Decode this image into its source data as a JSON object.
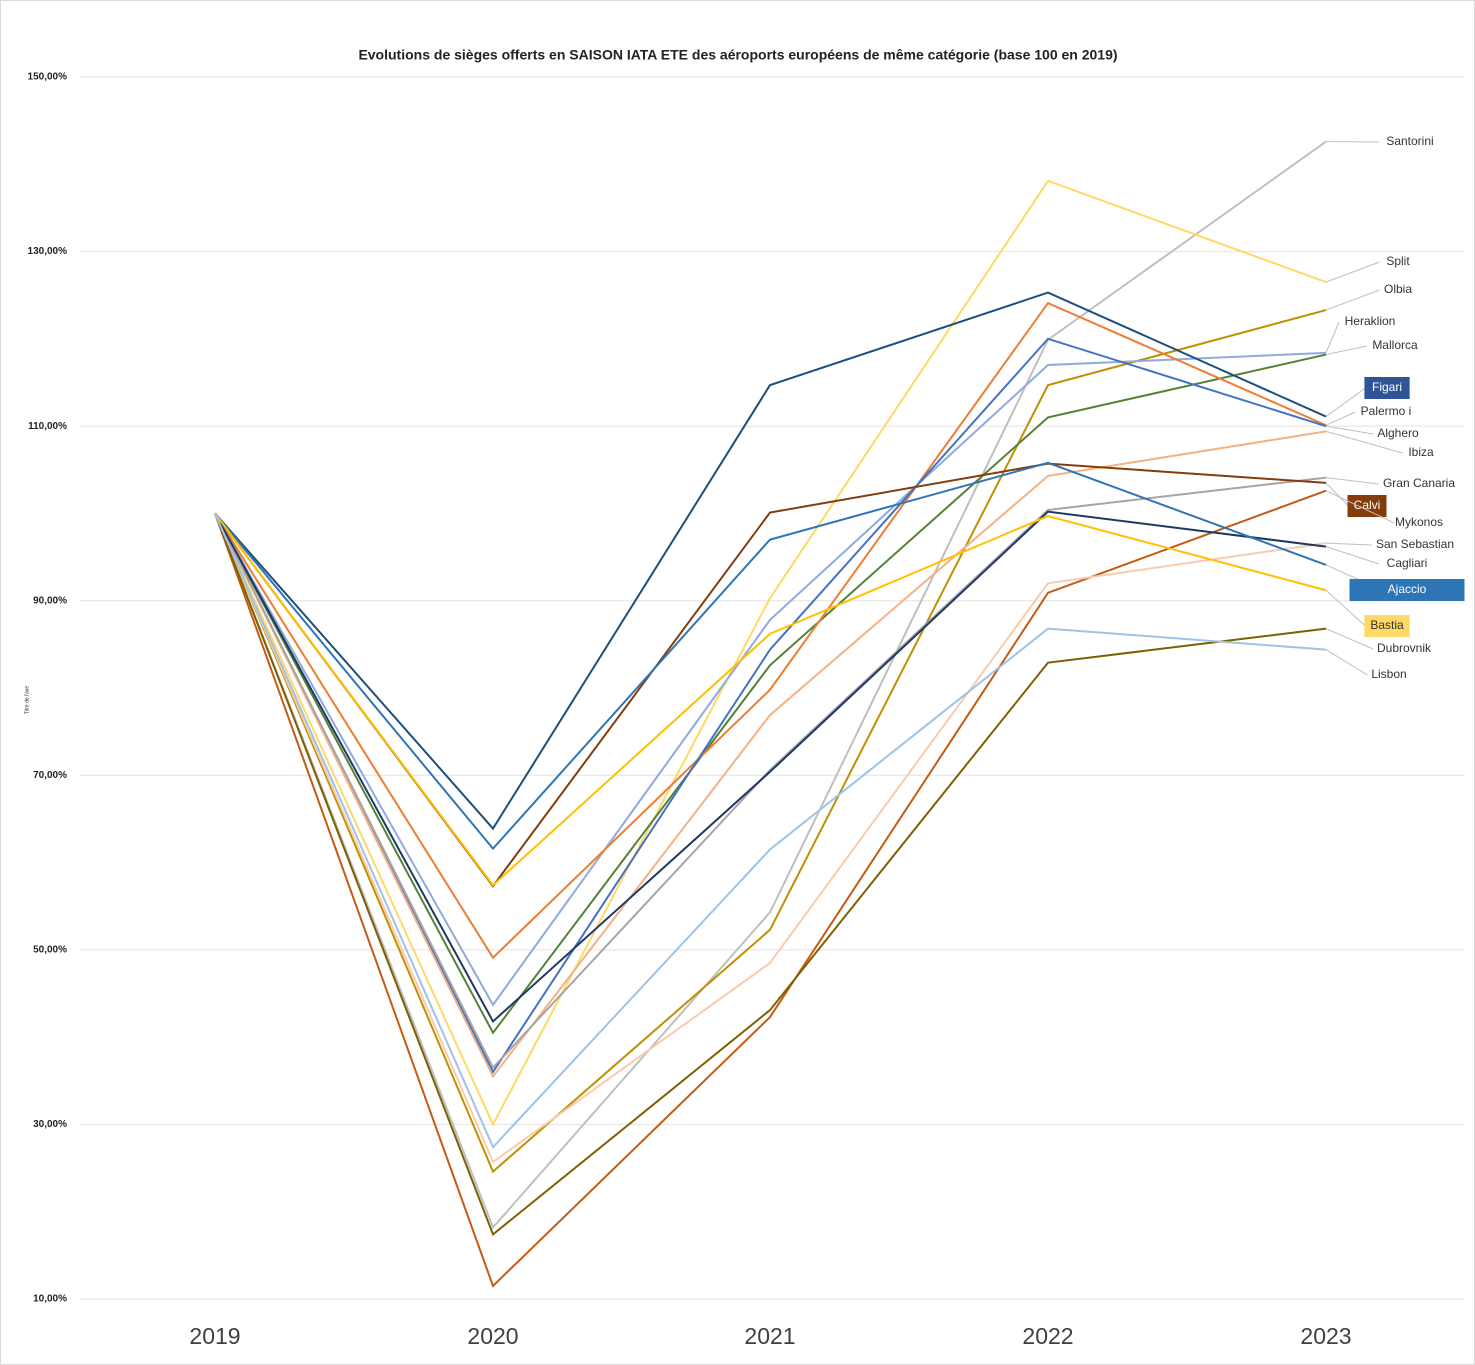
{
  "chart_data": {
    "type": "line",
    "title": "Evolutions de sièges offerts en SAISON IATA ETE des aéroports européens de même catégorie (base 100 en 2019)",
    "y_axis_label": "Titre de l'axe",
    "categories": [
      "2019",
      "2020",
      "2021",
      "2022",
      "2023"
    ],
    "ylim": [
      10,
      150
    ],
    "yticks": [
      {
        "value": 10,
        "label": "10,00%"
      },
      {
        "value": 30,
        "label": "30,00%"
      },
      {
        "value": 50,
        "label": "50,00%"
      },
      {
        "value": 70,
        "label": "70,00%"
      },
      {
        "value": 90,
        "label": "90,00%"
      },
      {
        "value": 110,
        "label": "110,00%"
      },
      {
        "value": 130,
        "label": "130,00%"
      },
      {
        "value": 150,
        "label": "150,00%"
      }
    ],
    "grid": true,
    "series": [
      {
        "name": "Santorini",
        "color": "#bfbfbf",
        "values": [
          100,
          18.2,
          54.3,
          119.9,
          142.6
        ]
      },
      {
        "name": "Split",
        "color": "#ffd966",
        "values": [
          100,
          30,
          90.3,
          138.1,
          126.5
        ]
      },
      {
        "name": "Olbia",
        "color": "#bf9000",
        "values": [
          100,
          24.6,
          52.3,
          114.7,
          123.3
        ]
      },
      {
        "name": "Heraklion",
        "color": "#8faadc",
        "values": [
          100,
          43.7,
          87.8,
          117,
          118.4
        ]
      },
      {
        "name": "Mallorca",
        "color": "#548235",
        "values": [
          100,
          40.5,
          82.6,
          111,
          118.2
        ]
      },
      {
        "name": "Figari",
        "color": "#1f4e79",
        "label_box": "#2f5597",
        "values": [
          100,
          63.9,
          114.7,
          125.3,
          111.1
        ]
      },
      {
        "name": "Palermo i",
        "color": "#ed7d31",
        "values": [
          100,
          49.1,
          79.8,
          124.1,
          110.1
        ]
      },
      {
        "name": "Alghero",
        "color": "#4472c4",
        "values": [
          100,
          36,
          84.4,
          120,
          110
        ]
      },
      {
        "name": "Ibiza",
        "color": "#f4b183",
        "values": [
          100,
          35.5,
          76.9,
          104.3,
          109.4
        ]
      },
      {
        "name": "Gran Canaria",
        "color": "#a5a5a5",
        "values": [
          100,
          36.5,
          70.6,
          100.4,
          104.1
        ]
      },
      {
        "name": "Calvi",
        "color": "#843c0c",
        "label_box": "#843c0c",
        "values": [
          100,
          57.3,
          100.1,
          105.7,
          103.5
        ]
      },
      {
        "name": "Mykonos",
        "color": "#c55a11",
        "values": [
          100,
          11.5,
          42.3,
          90.9,
          102.6
        ]
      },
      {
        "name": "San Sebastian",
        "color": "#f8cbad",
        "values": [
          100,
          25.7,
          48.5,
          92,
          96.6
        ]
      },
      {
        "name": "Cagliari",
        "color": "#203864",
        "values": [
          100,
          41.8,
          70.4,
          100.2,
          96.2
        ]
      },
      {
        "name": "Ajaccio",
        "color": "#2e75b6",
        "label_box": "#2e75b6",
        "values": [
          100,
          61.6,
          97,
          105.8,
          94.1
        ]
      },
      {
        "name": "Bastia",
        "color": "#ffc000",
        "label_box": "#ffd966",
        "values": [
          100,
          57.4,
          86.2,
          99.7,
          91.2
        ]
      },
      {
        "name": "Dubrovnik",
        "color": "#7f6000",
        "values": [
          100,
          17.4,
          43.1,
          82.9,
          86.8
        ]
      },
      {
        "name": "Lisbon",
        "color": "#9dc3e6",
        "values": [
          100,
          27.4,
          61.5,
          86.8,
          84.4
        ]
      }
    ]
  }
}
